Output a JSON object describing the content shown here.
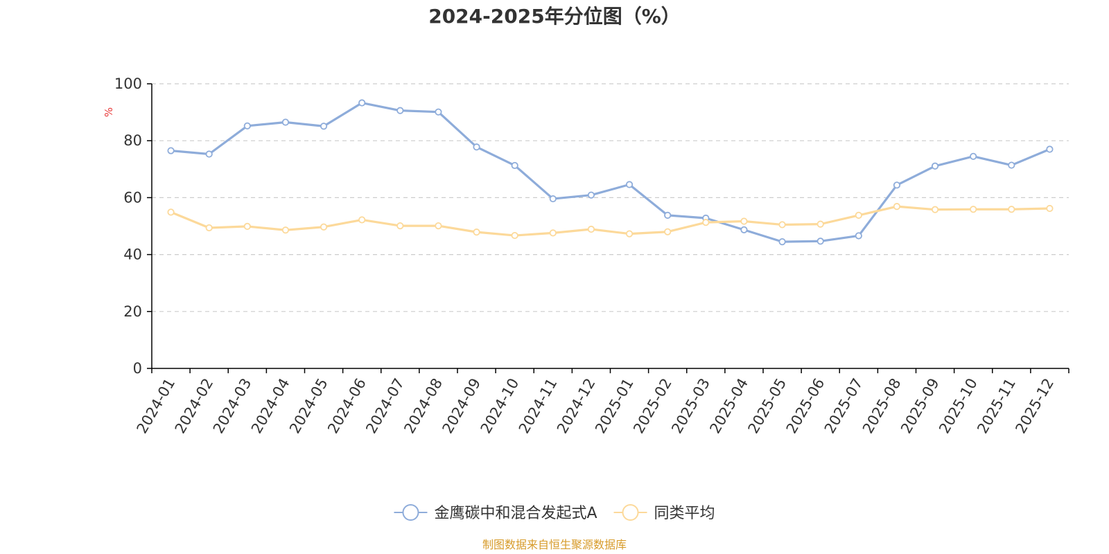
{
  "chart_data": {
    "type": "line",
    "title": "2024-2025年分位图（%）",
    "ylabel": "%",
    "xlabel": "",
    "ylim": [
      0,
      100
    ],
    "yticks": [
      0,
      20,
      40,
      60,
      80,
      100
    ],
    "grid": true,
    "legend_position": "bottom-center",
    "categories": [
      "2024-01",
      "2024-02",
      "2024-03",
      "2024-04",
      "2024-05",
      "2024-06",
      "2024-07",
      "2024-08",
      "2024-09",
      "2024-10",
      "2024-11",
      "2024-12",
      "2025-01",
      "2025-02",
      "2025-03",
      "2025-04",
      "2025-05",
      "2025-06",
      "2025-07",
      "2025-08",
      "2025-09",
      "2025-10",
      "2025-11",
      "2025-12"
    ],
    "series": [
      {
        "name": "金鹰碳中和混合发起式A",
        "color": "#8eacda",
        "values": [
          76.5,
          75.3,
          85.2,
          86.5,
          85.1,
          93.3,
          90.6,
          90.1,
          77.8,
          71.3,
          59.6,
          60.9,
          64.6,
          53.8,
          52.8,
          48.7,
          44.5,
          44.7,
          46.6,
          64.4,
          71.1,
          74.5,
          71.4,
          77.0
        ]
      },
      {
        "name": "同类平均",
        "color": "#fcd99a",
        "values": [
          54.9,
          49.4,
          49.9,
          48.6,
          49.7,
          52.2,
          50.1,
          50.1,
          47.9,
          46.7,
          47.6,
          48.9,
          47.3,
          48.0,
          51.3,
          51.7,
          50.5,
          50.7,
          53.8,
          56.9,
          55.8,
          55.9,
          55.9,
          56.2
        ]
      }
    ],
    "source": "制图数据来自恒生聚源数据库",
    "colors": {
      "axis": "#000000",
      "grid": "#cccccc",
      "text": "#333333",
      "unit": "#e83a3a",
      "source": "#d79b2a"
    }
  }
}
